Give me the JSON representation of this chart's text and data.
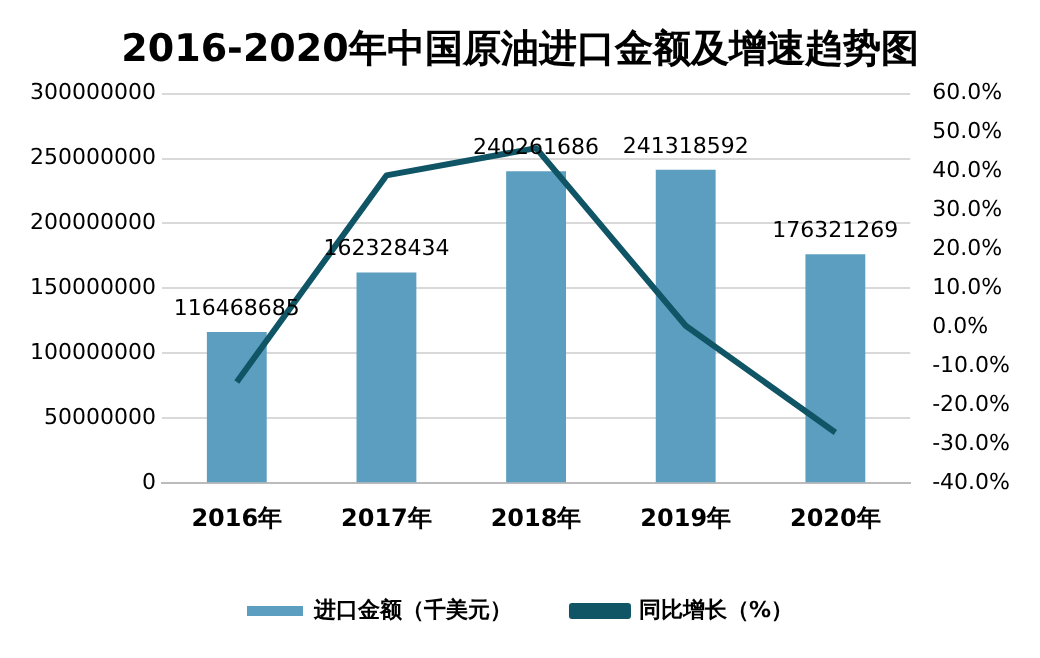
{
  "chart_data": {
    "type": "bar",
    "title": "2016-2020年中国原油进口金额及增速趋势图",
    "categories": [
      "2016年",
      "2017年",
      "2018年",
      "2019年",
      "2020年"
    ],
    "series": [
      {
        "name": "进口金额（千美元）",
        "color": "#5b9ec0",
        "values": [
          116468685,
          162328434,
          240261686,
          241318592,
          176321269
        ],
        "value_labels": [
          "116468685",
          "162328434",
          "240261686",
          "241318592",
          "176321269"
        ]
      },
      {
        "name": "同比增长（%）",
        "type": "line",
        "axis": "y2",
        "color": "#0f5566",
        "values": [
          -14,
          39,
          46,
          0.4,
          -27
        ]
      }
    ],
    "ylim": [
      0,
      300000000
    ],
    "yticks": [
      0,
      50000000,
      100000000,
      150000000,
      200000000,
      250000000,
      300000000
    ],
    "y2lim": [
      -40,
      60
    ],
    "y2ticks": [
      {
        "value": -40,
        "label": "-40.0%"
      },
      {
        "value": -30,
        "label": "-30.0%"
      },
      {
        "value": -20,
        "label": "-20.0%"
      },
      {
        "value": -10,
        "label": "-10.0%"
      },
      {
        "value": 0,
        "label": "0.0%"
      },
      {
        "value": 10,
        "label": "10.0%"
      },
      {
        "value": 20,
        "label": "20.0%"
      },
      {
        "value": 30,
        "label": "30.0%"
      },
      {
        "value": 40,
        "label": "40.0%"
      },
      {
        "value": 50,
        "label": "50.0%"
      },
      {
        "value": 60,
        "label": "60.0%"
      }
    ],
    "grid": "y",
    "legend": "bottom",
    "marker": "none",
    "line_style": "solid"
  }
}
